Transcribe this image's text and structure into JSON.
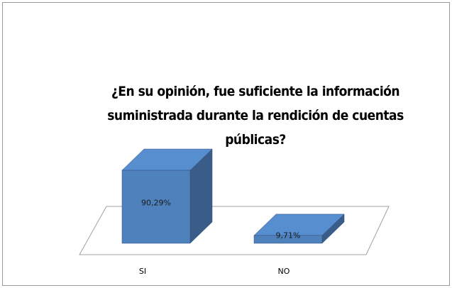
{
  "chart_data": {
    "type": "bar3d",
    "title": "¿En su opinión, fue suficiente la información suministrada durante la rendición de cuentas públicas?",
    "categories": [
      "SI",
      "NO"
    ],
    "values": [
      90.29,
      9.71
    ],
    "value_labels": [
      "90,29%",
      "9,71%"
    ],
    "color": "#4f81bd"
  }
}
